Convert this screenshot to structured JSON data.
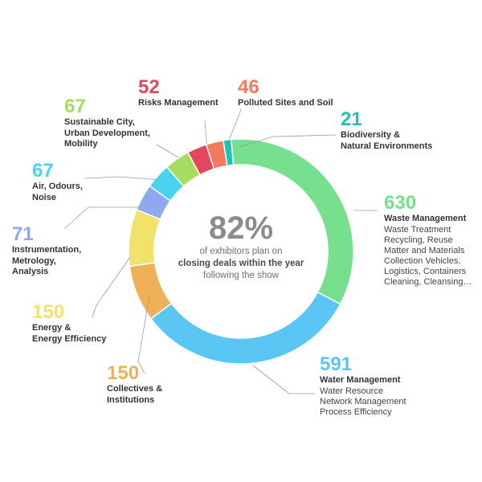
{
  "chart_data": {
    "type": "pie",
    "style": "donut",
    "center": {
      "percent": "82%",
      "lines": [
        {
          "text": "of exhibitors plan on",
          "bold": false
        },
        {
          "text": "closing deals within the year",
          "bold": true
        },
        {
          "text": "following the show",
          "bold": false
        }
      ]
    },
    "slices": [
      {
        "value": 630,
        "label": "630",
        "color": "#76e08e",
        "name_lines": [
          "Waste Management"
        ],
        "sub_lines": [
          "Waste Treatment",
          "Recycling, Reuse",
          "Matter and Materials",
          "Collection Vehicles,",
          "Logistics, Containers",
          "Cleaning, Cleansing…"
        ]
      },
      {
        "value": 591,
        "label": "591",
        "color": "#5ac6f3",
        "name_lines": [
          "Water Management"
        ],
        "sub_lines": [
          "Water Resource",
          "Network Management",
          "Process Efficiency"
        ]
      },
      {
        "value": 150,
        "label": "150",
        "color": "#eeb158",
        "name_lines": [
          "Collectives &",
          "Institutions"
        ],
        "sub_lines": []
      },
      {
        "value": 150,
        "label": "150",
        "color": "#f0e26a",
        "name_lines": [
          "Energy &",
          "Energy Efficiency"
        ],
        "sub_lines": []
      },
      {
        "value": 71,
        "label": "71",
        "color": "#8fa9ee",
        "name_lines": [
          "Instrumentation,",
          "Metrology,",
          "Analysis"
        ],
        "sub_lines": []
      },
      {
        "value": 67,
        "label": "67",
        "color": "#49d3f3",
        "name_lines": [
          "Air, Odours,",
          "Noise"
        ],
        "sub_lines": []
      },
      {
        "value": 67,
        "label": "67",
        "color": "#a6dd5e",
        "name_lines": [
          "Sustainable City,",
          "Urban Development,",
          "Mobility"
        ],
        "sub_lines": []
      },
      {
        "value": 52,
        "label": "52",
        "color": "#e2475f",
        "name_lines": [
          "Risks Management"
        ],
        "sub_lines": []
      },
      {
        "value": 46,
        "label": "46",
        "color": "#f47a5e",
        "name_lines": [
          "Polluted Sites and Soil"
        ],
        "sub_lines": []
      },
      {
        "value": 21,
        "label": "21",
        "color": "#1fc3b6",
        "name_lines": [
          "Biodiversity &",
          "Natural Environments"
        ],
        "sub_lines": []
      }
    ]
  }
}
